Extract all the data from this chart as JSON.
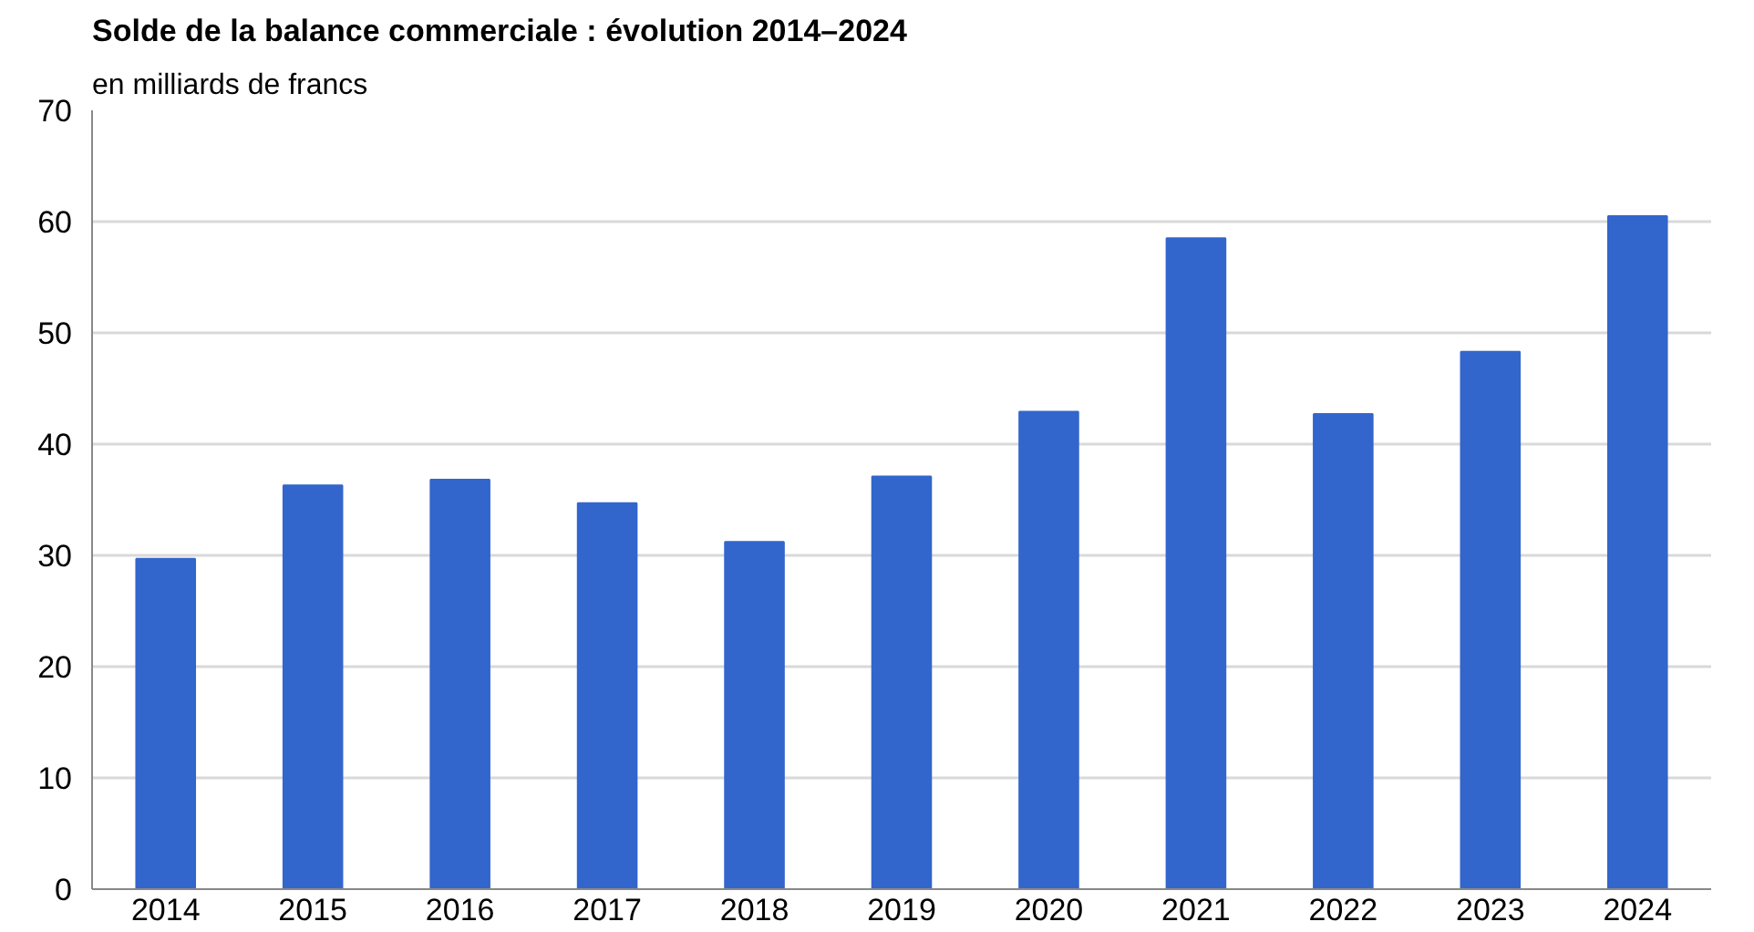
{
  "chart_data": {
    "type": "bar",
    "title": "Solde de la balance commerciale : évolution 2014–2024",
    "subtitle": "en milliards  de francs",
    "categories": [
      "2014",
      "2015",
      "2016",
      "2017",
      "2018",
      "2019",
      "2020",
      "2021",
      "2022",
      "2023",
      "2024"
    ],
    "values": [
      29.7,
      36.3,
      36.8,
      34.7,
      31.2,
      37.1,
      42.9,
      58.5,
      42.7,
      48.3,
      60.5
    ],
    "color": "#3366cc",
    "ylim": [
      0,
      70
    ],
    "yticks": [
      0,
      10,
      20,
      30,
      40,
      50,
      60,
      70
    ],
    "grid": "y"
  }
}
